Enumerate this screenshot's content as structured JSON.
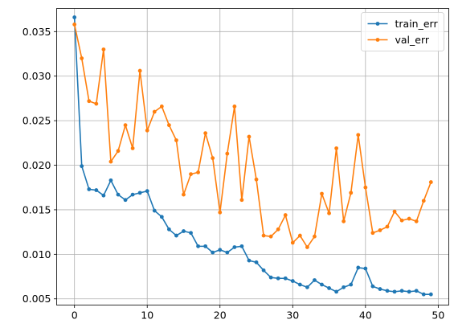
{
  "chart_data": {
    "type": "line",
    "title": "",
    "xlabel": "",
    "ylabel": "",
    "xlim": [
      -2.45,
      51.45
    ],
    "ylim": [
      0.0043,
      0.0376
    ],
    "xticks": [
      0,
      10,
      20,
      30,
      40,
      50
    ],
    "xtick_labels": [
      "0",
      "10",
      "20",
      "30",
      "40",
      "50"
    ],
    "yticks": [
      0.005,
      0.01,
      0.015,
      0.02,
      0.025,
      0.03,
      0.035
    ],
    "ytick_labels": [
      "0.005",
      "0.010",
      "0.015",
      "0.020",
      "0.025",
      "0.030",
      "0.035"
    ],
    "grid": true,
    "legend_position": "top-right",
    "x": [
      0,
      1,
      2,
      3,
      4,
      5,
      6,
      7,
      8,
      9,
      10,
      11,
      12,
      13,
      14,
      15,
      16,
      17,
      18,
      19,
      20,
      21,
      22,
      23,
      24,
      25,
      26,
      27,
      28,
      29,
      30,
      31,
      32,
      33,
      34,
      35,
      36,
      37,
      38,
      39,
      40,
      41,
      42,
      43,
      44,
      45,
      46,
      47,
      48,
      49
    ],
    "series": [
      {
        "name": "train_err",
        "color": "#1f77b4",
        "values": [
          0.0366,
          0.0199,
          0.0173,
          0.0172,
          0.0166,
          0.0183,
          0.0167,
          0.0161,
          0.0167,
          0.0169,
          0.0171,
          0.0149,
          0.0142,
          0.0128,
          0.0121,
          0.0126,
          0.0124,
          0.0109,
          0.0109,
          0.0102,
          0.0105,
          0.0102,
          0.0108,
          0.0109,
          0.0093,
          0.0091,
          0.0082,
          0.0074,
          0.0073,
          0.0073,
          0.007,
          0.0066,
          0.0063,
          0.0071,
          0.0066,
          0.0062,
          0.0058,
          0.0063,
          0.0066,
          0.0085,
          0.0084,
          0.0064,
          0.0061,
          0.0059,
          0.0058,
          0.0059,
          0.0058,
          0.0059,
          0.0055,
          0.0055
        ]
      },
      {
        "name": "val_err",
        "color": "#ff7f0e",
        "values": [
          0.0358,
          0.032,
          0.0272,
          0.0269,
          0.033,
          0.0204,
          0.0216,
          0.0245,
          0.0219,
          0.0306,
          0.0239,
          0.026,
          0.0266,
          0.0245,
          0.0228,
          0.0167,
          0.019,
          0.0192,
          0.0236,
          0.0208,
          0.0147,
          0.0213,
          0.0266,
          0.0161,
          0.0232,
          0.0184,
          0.0121,
          0.012,
          0.0128,
          0.0144,
          0.0113,
          0.0121,
          0.0108,
          0.012,
          0.0168,
          0.0146,
          0.0219,
          0.0137,
          0.0169,
          0.0234,
          0.0175,
          0.0124,
          0.0127,
          0.0131,
          0.0148,
          0.0138,
          0.014,
          0.0137,
          0.016,
          0.0181
        ]
      }
    ]
  }
}
